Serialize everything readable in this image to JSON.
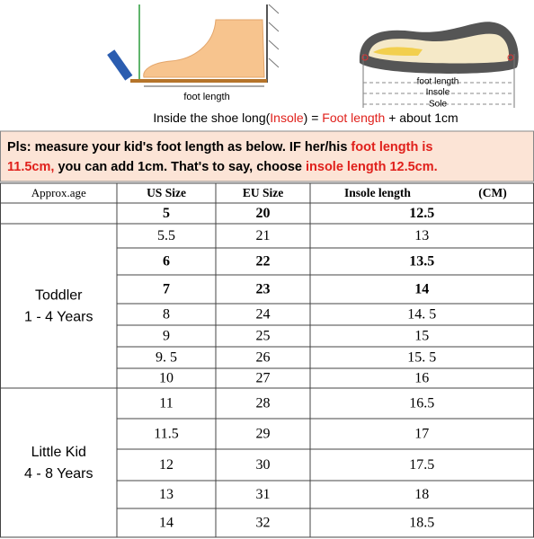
{
  "illustration": {
    "left_label": "foot length",
    "right_labels": [
      "foot length",
      "Insole",
      "Sole"
    ]
  },
  "caption": [
    "Inside the shoe long(",
    "Insole",
    ") = ",
    "Foot length",
    " + about 1cm"
  ],
  "notice": {
    "line1": [
      "Pls: measure your kid's foot length as below. IF her/his ",
      "foot length is"
    ],
    "line2": [
      "11.5cm,",
      " you can add 1cm. That's to say, choose ",
      "insole length 12.5cm."
    ]
  },
  "table": {
    "header": [
      "Approx.age",
      "US Size",
      "EU Size",
      "Insole length"
    ],
    "header_unit": "(CM)",
    "sections": [
      {
        "rows": [
          [
            "5",
            "20",
            "12.5"
          ]
        ]
      },
      {
        "label": [
          "Toddler",
          "1 - 4 Years"
        ],
        "rows": [
          [
            "5.5",
            "21",
            "13"
          ],
          [
            "6",
            "22",
            "13.5"
          ],
          [
            "7",
            "23",
            "14"
          ],
          [
            "8",
            "24",
            "14. 5"
          ],
          [
            "9",
            "25",
            "15"
          ],
          [
            "9. 5",
            "26",
            "15. 5"
          ],
          [
            "10",
            "27",
            "16"
          ]
        ]
      },
      {
        "label": [
          "Little Kid",
          "4 - 8 Years"
        ],
        "rows": [
          [
            "11",
            "28",
            "16.5"
          ],
          [
            "11.5",
            "29",
            "17"
          ],
          [
            "12",
            "30",
            "17.5"
          ],
          [
            "13",
            "31",
            "18"
          ],
          [
            "14",
            "32",
            "18.5"
          ]
        ]
      }
    ]
  }
}
